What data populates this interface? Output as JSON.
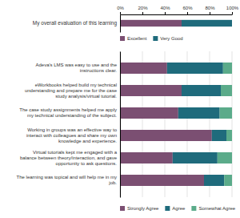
{
  "chart_data": [
    {
      "type": "bar",
      "orientation": "horizontal",
      "stacked": true,
      "categories": [
        "My overall evaluation of this learning"
      ],
      "series": [
        {
          "name": "Excellent",
          "color": "#7B4F72",
          "values": [
            55
          ]
        },
        {
          "name": "Very Good",
          "color": "#1F6B7C",
          "values": [
            45
          ]
        }
      ],
      "xlim": [
        0,
        100
      ],
      "xticks": [
        {
          "value": 0,
          "label": "0%"
        },
        {
          "value": 20,
          "label": "20%"
        },
        {
          "value": 40,
          "label": "40%"
        },
        {
          "value": 60,
          "label": "60%"
        },
        {
          "value": 80,
          "label": "80%"
        },
        {
          "value": 100,
          "label": "100%"
        }
      ],
      "legend": "bottom"
    },
    {
      "type": "bar",
      "orientation": "horizontal",
      "stacked": true,
      "categories": [
        "Adeva's LMS was easy to use and the\ninstructions clear.",
        "eWorkbooks helped build my technical\nunderstanding and prepare me for the case\nstudy analysis/virtual tutorial.",
        "The case study assignments helped me apply\nmy technical understanding of the subject.",
        "Working in groups was an effective way to\ninteract with colleagues and share my own\nknowledge and experience.",
        "Virtual tutorials kept me engaged with a\nbalance between theory/interaction, and gave\nopportunity to ask questions.",
        "The learning was topical and will help me in my\njob."
      ],
      "series": [
        {
          "name": "Strongly Agree",
          "color": "#7B4F72",
          "values": [
            42,
            55,
            52,
            82,
            47,
            75
          ]
        },
        {
          "name": "Agree",
          "color": "#1F6B7C",
          "values": [
            50,
            35,
            37,
            13,
            40,
            18
          ]
        },
        {
          "name": "Somewhat Agree",
          "color": "#5BAB8A",
          "values": [
            8,
            10,
            11,
            5,
            13,
            7
          ]
        }
      ],
      "xlim": [
        0,
        100
      ],
      "xticks": [
        0,
        20,
        40,
        60,
        80,
        100
      ],
      "grid": true,
      "tick_labels": "y",
      "legend": "bottom"
    }
  ]
}
